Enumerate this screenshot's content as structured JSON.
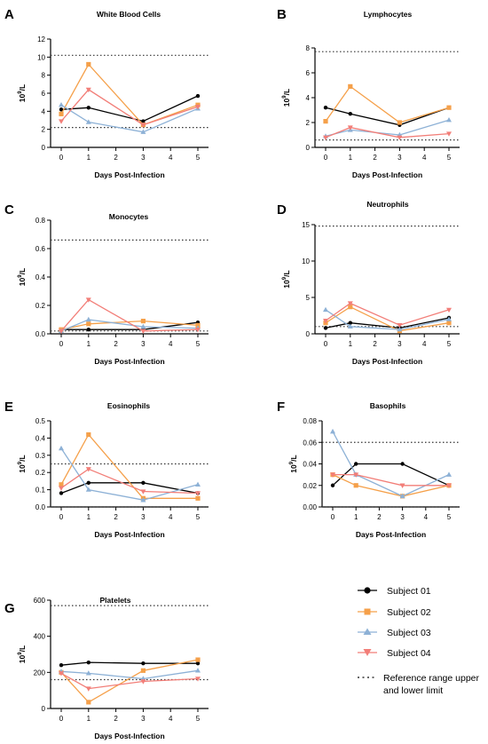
{
  "colors": {
    "subject_01": "#000000",
    "subject_02": "#F5A04A",
    "subject_03": "#8DB1D6",
    "subject_04": "#F27E78",
    "reference": "#333333"
  },
  "legend": {
    "items": [
      {
        "name": "Subject 01",
        "color": "#000000",
        "marker": "circle"
      },
      {
        "name": "Subject 02",
        "color": "#F5A04A",
        "marker": "square"
      },
      {
        "name": "Subject 03",
        "color": "#8DB1D6",
        "marker": "triangle-up"
      },
      {
        "name": "Subject 04",
        "color": "#F27E78",
        "marker": "triangle-down"
      }
    ],
    "reference_line1": "Reference range upper",
    "reference_line2": "and lower limit"
  },
  "chart_data": [
    {
      "panel": "A",
      "type": "line",
      "title": "White Blood Cells",
      "xlabel": "Days Post-Infection",
      "ylabel_base": "10",
      "ylabel_exp": "9",
      "ylabel_unit": "/L",
      "x": [
        0,
        1,
        3,
        5
      ],
      "xticks": [
        0,
        1,
        2,
        3,
        4,
        5
      ],
      "ylim": [
        0,
        12
      ],
      "yticks": [
        0,
        2,
        4,
        6,
        8,
        10,
        12
      ],
      "ytick_labels": [
        "0",
        "2",
        "4",
        "6",
        "8",
        "10",
        "12"
      ],
      "reference_range": [
        2.2,
        10.2
      ],
      "series": [
        {
          "name": "Subject 01",
          "values": [
            4.2,
            4.4,
            2.9,
            5.7
          ]
        },
        {
          "name": "Subject 02",
          "values": [
            3.7,
            9.2,
            2.5,
            4.7
          ]
        },
        {
          "name": "Subject 03",
          "values": [
            4.7,
            2.8,
            1.7,
            4.3
          ]
        },
        {
          "name": "Subject 04",
          "values": [
            2.9,
            6.4,
            2.5,
            4.5
          ]
        }
      ]
    },
    {
      "panel": "B",
      "type": "line",
      "title": "Lymphocytes",
      "xlabel": "Days Post-Infection",
      "ylabel_base": "10",
      "ylabel_exp": "9",
      "ylabel_unit": "/L",
      "x": [
        0,
        1,
        3,
        5
      ],
      "xticks": [
        0,
        1,
        2,
        3,
        4,
        5
      ],
      "ylim": [
        0,
        8
      ],
      "yticks": [
        0,
        2,
        4,
        6,
        8
      ],
      "ytick_labels": [
        "0",
        "2",
        "4",
        "6",
        "8"
      ],
      "reference_range": [
        0.6,
        7.7
      ],
      "series": [
        {
          "name": "Subject 01",
          "values": [
            3.2,
            2.7,
            1.8,
            3.2
          ]
        },
        {
          "name": "Subject 02",
          "values": [
            2.1,
            4.9,
            2.0,
            3.2
          ]
        },
        {
          "name": "Subject 03",
          "values": [
            0.9,
            1.4,
            1.0,
            2.2
          ]
        },
        {
          "name": "Subject 04",
          "values": [
            0.8,
            1.6,
            0.8,
            1.1
          ]
        }
      ]
    },
    {
      "panel": "C",
      "type": "line",
      "title": "Monocytes",
      "xlabel": "Days Post-Infection",
      "ylabel_base": "10",
      "ylabel_exp": "9",
      "ylabel_unit": "/L",
      "x": [
        0,
        1,
        3,
        5
      ],
      "xticks": [
        0,
        1,
        2,
        3,
        4,
        5
      ],
      "ylim": [
        0,
        0.8
      ],
      "yticks": [
        0,
        0.2,
        0.4,
        0.6,
        0.8
      ],
      "ytick_labels": [
        "0.0",
        "0.2",
        "0.4",
        "0.6",
        "0.8"
      ],
      "reference_range": [
        0.02,
        0.66
      ],
      "series": [
        {
          "name": "Subject 01",
          "values": [
            0.03,
            0.03,
            0.03,
            0.08
          ]
        },
        {
          "name": "Subject 02",
          "values": [
            0.03,
            0.07,
            0.09,
            0.06
          ]
        },
        {
          "name": "Subject 03",
          "values": [
            0.02,
            0.1,
            0.05,
            0.04
          ]
        },
        {
          "name": "Subject 04",
          "values": [
            0.02,
            0.24,
            0.02,
            0.03
          ]
        }
      ]
    },
    {
      "panel": "D",
      "type": "line",
      "title": "Neutrophils",
      "xlabel": "Days Post-Infection",
      "ylabel_base": "10",
      "ylabel_exp": "9",
      "ylabel_unit": "/L",
      "x": [
        0,
        1,
        3,
        5
      ],
      "xticks": [
        0,
        1,
        2,
        3,
        4,
        5
      ],
      "ylim": [
        0,
        15
      ],
      "yticks": [
        0,
        5,
        10,
        15
      ],
      "ytick_labels": [
        "0",
        "5",
        "10",
        "15"
      ],
      "reference_range": [
        1.0,
        14.8
      ],
      "series": [
        {
          "name": "Subject 01",
          "values": [
            0.8,
            1.5,
            0.8,
            2.2
          ]
        },
        {
          "name": "Subject 02",
          "values": [
            1.5,
            3.7,
            0.4,
            1.5
          ]
        },
        {
          "name": "Subject 03",
          "values": [
            3.3,
            1.0,
            0.6,
            2.0
          ]
        },
        {
          "name": "Subject 04",
          "values": [
            1.8,
            4.2,
            1.2,
            3.3
          ]
        }
      ]
    },
    {
      "panel": "E",
      "type": "line",
      "title": "Eosinophils",
      "xlabel": "Days Post-Infection",
      "ylabel_base": "10",
      "ylabel_exp": "9",
      "ylabel_unit": "/L",
      "x": [
        0,
        1,
        3,
        5
      ],
      "xticks": [
        0,
        1,
        2,
        3,
        4,
        5
      ],
      "ylim": [
        0,
        0.5
      ],
      "yticks": [
        0,
        0.1,
        0.2,
        0.3,
        0.4,
        0.5
      ],
      "ytick_labels": [
        "0.0",
        "0.1",
        "0.2",
        "0.3",
        "0.4",
        "0.5"
      ],
      "reference_range": [
        0.0,
        0.25
      ],
      "series": [
        {
          "name": "Subject 01",
          "values": [
            0.08,
            0.14,
            0.14,
            0.08
          ]
        },
        {
          "name": "Subject 02",
          "values": [
            0.13,
            0.42,
            0.05,
            0.05
          ]
        },
        {
          "name": "Subject 03",
          "values": [
            0.34,
            0.1,
            0.04,
            0.13
          ]
        },
        {
          "name": "Subject 04",
          "values": [
            0.11,
            0.22,
            0.09,
            0.08
          ]
        }
      ]
    },
    {
      "panel": "F",
      "type": "line",
      "title": "Basophils",
      "xlabel": "Days Post-Infection",
      "ylabel_base": "10",
      "ylabel_exp": "9",
      "ylabel_unit": "/L",
      "x": [
        0,
        1,
        3,
        5
      ],
      "xticks": [
        0,
        1,
        2,
        3,
        4,
        5
      ],
      "ylim": [
        0,
        0.08
      ],
      "yticks": [
        0,
        0.02,
        0.04,
        0.06,
        0.08
      ],
      "ytick_labels": [
        "0.00",
        "0.02",
        "0.04",
        "0.06",
        "0.08"
      ],
      "reference_range": [
        0.0,
        0.06
      ],
      "series": [
        {
          "name": "Subject 01",
          "values": [
            0.02,
            0.04,
            0.04,
            0.02
          ]
        },
        {
          "name": "Subject 02",
          "values": [
            0.03,
            0.02,
            0.01,
            0.02
          ]
        },
        {
          "name": "Subject 03",
          "values": [
            0.07,
            0.03,
            0.01,
            0.03
          ]
        },
        {
          "name": "Subject 04",
          "values": [
            0.03,
            0.03,
            0.02,
            0.02
          ]
        }
      ]
    },
    {
      "panel": "G",
      "type": "line",
      "title": "Platelets",
      "xlabel": "Days Post-Infection",
      "ylabel_base": "10",
      "ylabel_exp": "9",
      "ylabel_unit": "/L",
      "x": [
        0,
        1,
        3,
        5
      ],
      "xticks": [
        0,
        1,
        2,
        3,
        4,
        5
      ],
      "ylim": [
        0,
        600
      ],
      "yticks": [
        0,
        200,
        400,
        600
      ],
      "ytick_labels": [
        "0",
        "200",
        "400",
        "600"
      ],
      "reference_range": [
        160,
        570
      ],
      "series": [
        {
          "name": "Subject 01",
          "values": [
            240,
            255,
            250,
            250
          ]
        },
        {
          "name": "Subject 02",
          "values": [
            200,
            35,
            210,
            270
          ]
        },
        {
          "name": "Subject 03",
          "values": [
            205,
            195,
            165,
            210
          ]
        },
        {
          "name": "Subject 04",
          "values": [
            195,
            110,
            150,
            165
          ]
        }
      ]
    }
  ]
}
